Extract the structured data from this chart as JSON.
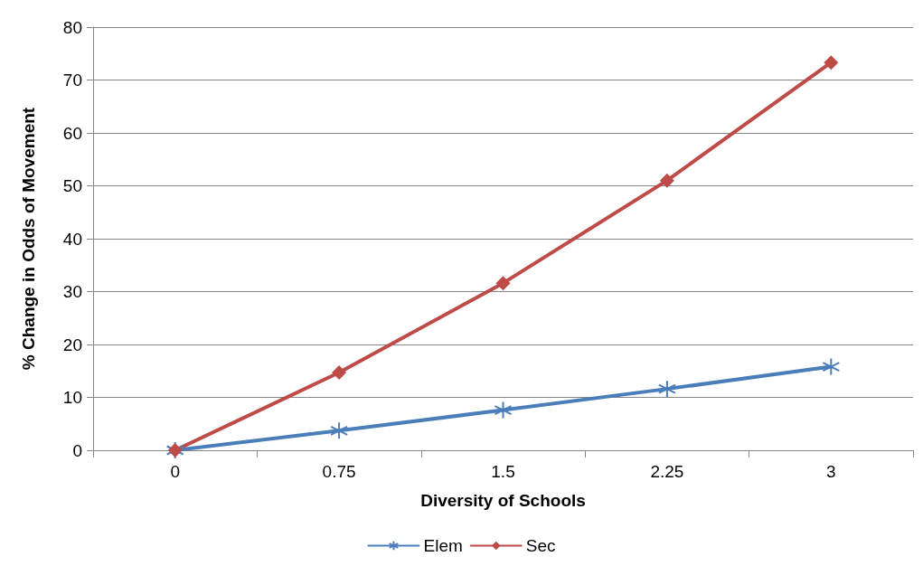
{
  "chart_data": {
    "type": "line",
    "xlabel": "Diversity of Schools",
    "ylabel": "% Change in Odds of Movement",
    "categories": [
      "0",
      "0.75",
      "1.5",
      "2.25",
      "3"
    ],
    "series": [
      {
        "name": "Elem",
        "color": "#4a7ebb",
        "marker": "cross",
        "values": [
          0,
          3.7,
          7.6,
          11.6,
          15.8
        ]
      },
      {
        "name": "Sec",
        "color": "#be4b48",
        "marker": "diamond",
        "values": [
          0,
          14.7,
          31.6,
          51,
          73.3
        ]
      }
    ],
    "ylim": [
      0,
      80
    ],
    "yticks": [
      0,
      10,
      20,
      30,
      40,
      50,
      60,
      70,
      80
    ],
    "grid": "y",
    "legend": "bottom",
    "line_style": "solid"
  }
}
